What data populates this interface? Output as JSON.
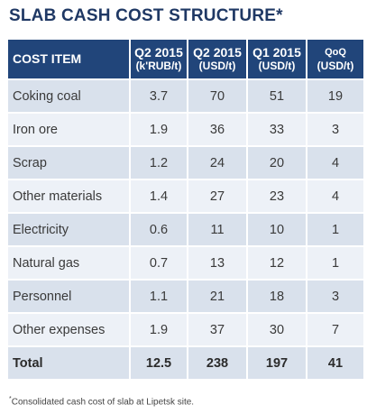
{
  "title": "SLAB CASH COST STRUCTURE*",
  "table": {
    "headers": [
      {
        "line1": "COST ITEM",
        "line2": ""
      },
      {
        "line1": "Q2 2015",
        "line2": "(k'RUB/t)"
      },
      {
        "line1": "Q2 2015",
        "line2": "(USD/t)"
      },
      {
        "line1": "Q1 2015",
        "line2": "(USD/t)"
      },
      {
        "line1": "QoQ",
        "line2": "(USD/t)"
      }
    ],
    "rows": [
      {
        "item": "Coking coal",
        "q2_krub": "3.7",
        "q2_usd": "70",
        "q1_usd": "51",
        "qoq": "19"
      },
      {
        "item": "Iron ore",
        "q2_krub": "1.9",
        "q2_usd": "36",
        "q1_usd": "33",
        "qoq": "3"
      },
      {
        "item": "Scrap",
        "q2_krub": "1.2",
        "q2_usd": "24",
        "q1_usd": "20",
        "qoq": "4"
      },
      {
        "item": "Other materials",
        "q2_krub": "1.4",
        "q2_usd": "27",
        "q1_usd": "23",
        "qoq": "4"
      },
      {
        "item": "Electricity",
        "q2_krub": "0.6",
        "q2_usd": "11",
        "q1_usd": "10",
        "qoq": "1"
      },
      {
        "item": "Natural gas",
        "q2_krub": "0.7",
        "q2_usd": "13",
        "q1_usd": "12",
        "qoq": "1"
      },
      {
        "item": "Personnel",
        "q2_krub": "1.1",
        "q2_usd": "21",
        "q1_usd": "18",
        "qoq": "3"
      },
      {
        "item": "Other expenses",
        "q2_krub": "1.9",
        "q2_usd": "37",
        "q1_usd": "30",
        "qoq": "7"
      }
    ],
    "total": {
      "item": "Total",
      "q2_krub": "12.5",
      "q2_usd": "238",
      "q1_usd": "197",
      "qoq": "41"
    }
  },
  "footnote": {
    "marker": "*",
    "text": "Consolidated cash cost of slab at Lipetsk site."
  },
  "colors": {
    "title": "#1f3864",
    "header_bg": "#21457a",
    "row_band_dark": "#d9e1ec",
    "row_band_light": "#edf1f7"
  }
}
